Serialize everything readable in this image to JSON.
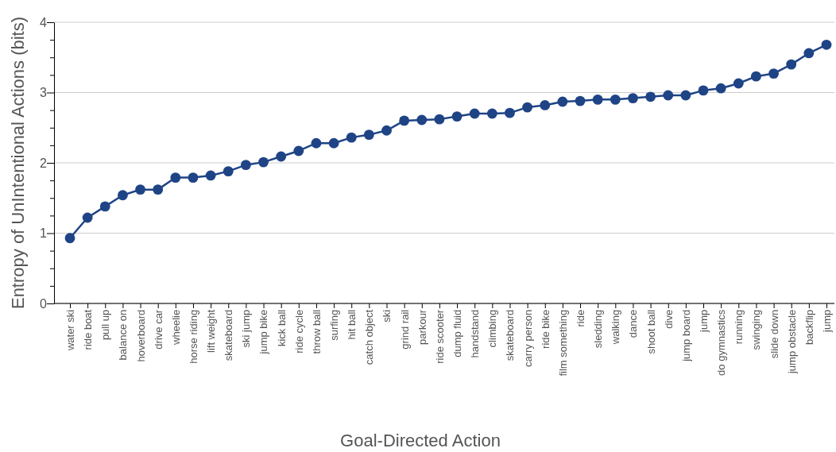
{
  "chart_data": {
    "type": "line",
    "xlabel": "Goal-Directed Action",
    "ylabel": "Entropy of UnIntentional Actions (bits)",
    "categories": [
      "water ski",
      "ride boat",
      "pull up",
      "balance on",
      "hoverboard",
      "drive car",
      "wheelie",
      "horse riding",
      "lift weight",
      "skateboard",
      "ski jump",
      "jump bike",
      "kick ball",
      "ride cycle",
      "throw ball",
      "surfing",
      "hit ball",
      "catch object",
      "ski",
      "grind rail",
      "parkour",
      "ride scooter",
      "dump fluid",
      "handstand",
      "climbing",
      "skateboard",
      "carry person",
      "ride bike",
      "film something",
      "ride",
      "sledding",
      "walking",
      "dance",
      "shoot ball",
      "dive",
      "jump board",
      "jump",
      "do gymnastics",
      "running",
      "swinging",
      "slide down",
      "jump obstacle",
      "backflip",
      "jump"
    ],
    "series": [
      {
        "color": "#1f4486",
        "values": [
          0.93,
          1.22,
          1.38,
          1.54,
          1.62,
          1.62,
          1.79,
          1.79,
          1.82,
          1.88,
          1.97,
          2.01,
          2.09,
          2.17,
          2.28,
          2.28,
          2.36,
          2.4,
          2.46,
          2.6,
          2.61,
          2.62,
          2.66,
          2.7,
          2.7,
          2.71,
          2.79,
          2.82,
          2.87,
          2.88,
          2.9,
          2.9,
          2.92,
          2.94,
          2.96,
          2.96,
          3.03,
          3.06,
          3.13,
          3.23,
          3.27,
          3.4,
          3.56,
          3.68
        ]
      }
    ],
    "ylim": [
      0,
      4
    ],
    "yticks": [
      0,
      {
        "value": 0.25,
        "label": null
      },
      {
        "value": 0.5,
        "label": null
      },
      {
        "value": 0.75,
        "label": null
      },
      1,
      {
        "value": 1.25,
        "label": null
      },
      {
        "value": 1.5,
        "label": null
      },
      {
        "value": 1.75,
        "label": null
      },
      2,
      {
        "value": 2.25,
        "label": null
      },
      {
        "value": 2.5,
        "label": null
      },
      {
        "value": 2.75,
        "label": null
      },
      3,
      {
        "value": 3.25,
        "label": null
      },
      {
        "value": 3.5,
        "label": null
      },
      {
        "value": 3.75,
        "label": null
      },
      4
    ],
    "grid": "y",
    "marker": "circle",
    "line_style": "solid"
  }
}
